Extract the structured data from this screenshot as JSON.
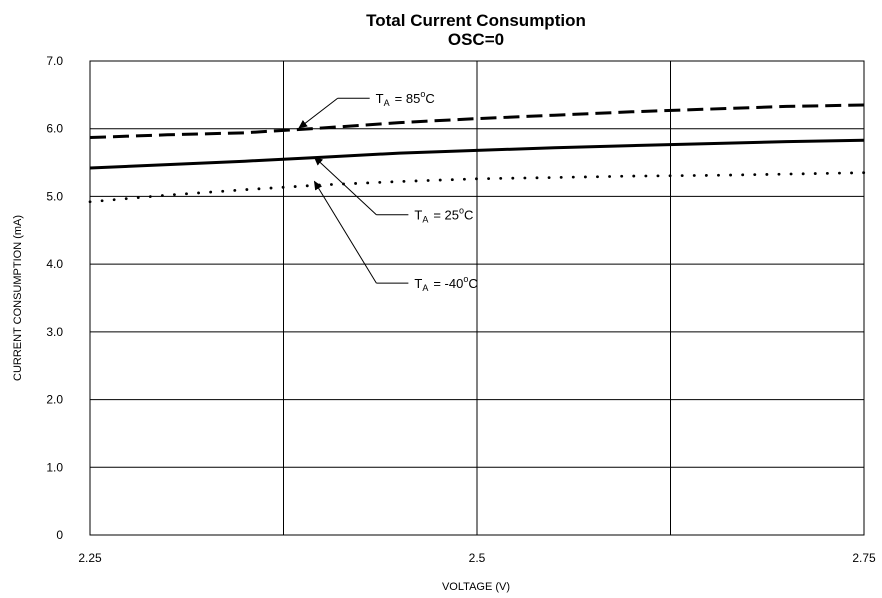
{
  "chart_data": {
    "type": "line",
    "title": "Total Current Consumption",
    "subtitle": "OSC=0",
    "xlabel": "VOLTAGE (V)",
    "ylabel": "CURRENT CONSUMPTION (mA)",
    "xlim": [
      2.25,
      2.75
    ],
    "ylim": [
      0,
      7
    ],
    "x_tick_labels": [
      "2.25",
      "2.5",
      "2.75"
    ],
    "y_tick_labels": [
      "0",
      "1.0",
      "2.0",
      "3.0",
      "4.0",
      "5.0",
      "6.0",
      "7.0"
    ],
    "x_gridlines": [
      2.25,
      2.375,
      2.5,
      2.625,
      2.75
    ],
    "y_gridlines": [
      0,
      1,
      2,
      3,
      4,
      5,
      6,
      7
    ],
    "grid": true,
    "series": [
      {
        "name_parts": [
          "T",
          "A",
          "= 85",
          "o",
          "C"
        ],
        "style": "dashed",
        "color": "#000000",
        "x": [
          2.25,
          2.3,
          2.35,
          2.4,
          2.45,
          2.5,
          2.55,
          2.6,
          2.65,
          2.7,
          2.75
        ],
        "y": [
          5.87,
          5.91,
          5.94,
          6.01,
          6.09,
          6.15,
          6.2,
          6.25,
          6.29,
          6.33,
          6.35
        ]
      },
      {
        "name_parts": [
          "T",
          "A",
          "= 25",
          "o",
          "C"
        ],
        "style": "solid",
        "color": "#000000",
        "x": [
          2.25,
          2.3,
          2.35,
          2.4,
          2.45,
          2.5,
          2.55,
          2.6,
          2.65,
          2.7,
          2.75
        ],
        "y": [
          5.42,
          5.47,
          5.52,
          5.58,
          5.64,
          5.68,
          5.72,
          5.75,
          5.78,
          5.81,
          5.83
        ]
      },
      {
        "name_parts": [
          "T",
          "A",
          "= -40",
          "o",
          "C"
        ],
        "style": "dotted",
        "color": "#000000",
        "x": [
          2.25,
          2.3,
          2.35,
          2.4,
          2.45,
          2.5,
          2.55,
          2.6,
          2.65,
          2.7,
          2.75
        ],
        "y": [
          4.92,
          5.02,
          5.1,
          5.17,
          5.22,
          5.26,
          5.28,
          5.3,
          5.31,
          5.33,
          5.35
        ]
      }
    ],
    "annotations": [
      {
        "series_index": 0,
        "arrow_to": [
          2.385,
          6.01
        ],
        "elbow": [
          2.41,
          6.45
        ]
      },
      {
        "series_index": 1,
        "arrow_to": [
          2.395,
          5.58
        ],
        "elbow": [
          2.435,
          4.73
        ]
      },
      {
        "series_index": 2,
        "arrow_to": [
          2.395,
          5.22
        ],
        "elbow": [
          2.435,
          3.72
        ]
      }
    ]
  }
}
